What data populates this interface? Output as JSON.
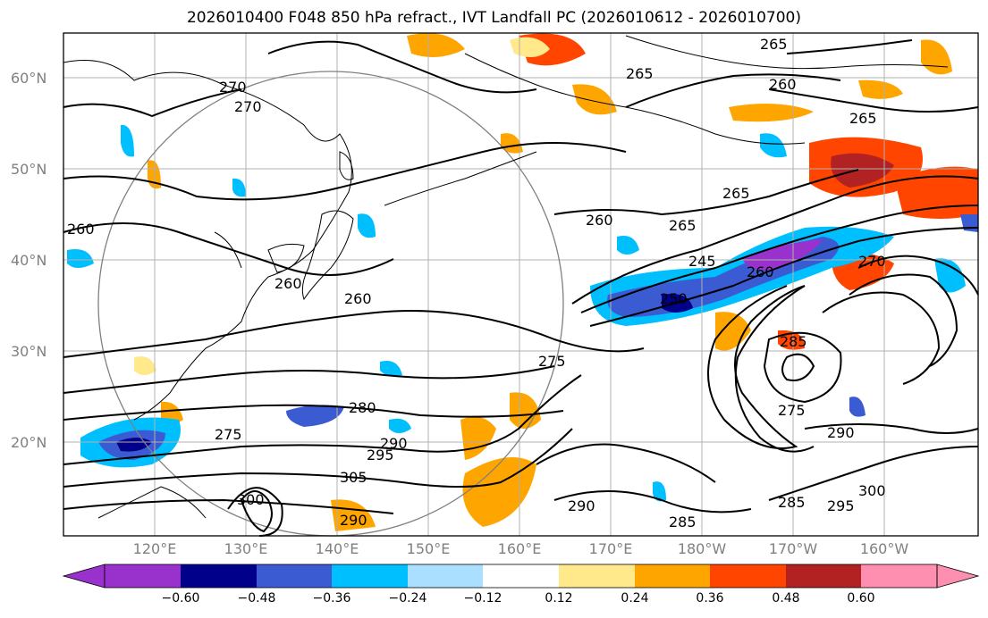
{
  "title": "2026010400 F048 850 hPa refract., IVT Landfall PC (2026010612 - 2026010700)",
  "lat_labels": [
    "60°N",
    "50°N",
    "40°N",
    "30°N",
    "20°N"
  ],
  "lon_labels": [
    "120°E",
    "130°E",
    "140°E",
    "150°E",
    "160°E",
    "170°E",
    "180°W",
    "170°W",
    "160°W"
  ],
  "contour_labels": [
    "270",
    "270",
    "265",
    "265",
    "260",
    "265",
    "265",
    "260",
    "260",
    "260",
    "265",
    "245",
    "250",
    "260",
    "270",
    "275",
    "285",
    "280",
    "275",
    "290",
    "295",
    "305",
    "300",
    "290",
    "290",
    "285",
    "285",
    "300",
    "295",
    "290",
    "260",
    "275"
  ],
  "colorbar": {
    "ticks": [
      "−0.60",
      "−0.48",
      "−0.36",
      "−0.24",
      "−0.12",
      "0.12",
      "0.24",
      "0.36",
      "0.48",
      "0.60"
    ],
    "colors": [
      "#9932cc",
      "#00008b",
      "#3a5bd1",
      "#00bfff",
      "#aadfff",
      "#ffffff",
      "#ffe98a",
      "#ffa500",
      "#ff4500",
      "#b22222",
      "#ff8fb0"
    ]
  }
}
